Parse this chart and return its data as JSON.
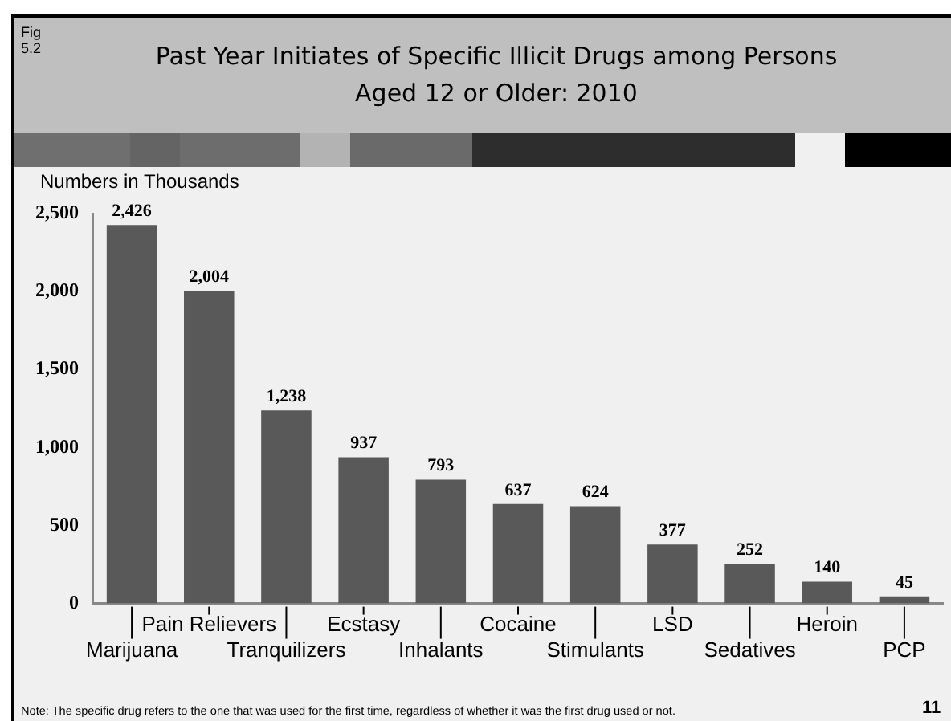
{
  "chart_data": {
    "type": "bar",
    "title": "Past Year Initiates of Specific Illicit Drugs among Persons Aged 12 or Older: 2010",
    "ylabel": "Numbers in Thousands",
    "categories": [
      "Marijuana",
      "Pain Relievers",
      "Tranquilizers",
      "Ecstasy",
      "Inhalants",
      "Cocaine",
      "Stimulants",
      "LSD",
      "Sedatives",
      "Heroin",
      "PCP"
    ],
    "values": [
      2426,
      2004,
      1238,
      937,
      793,
      637,
      624,
      377,
      252,
      140,
      45
    ],
    "value_labels": [
      "2,426",
      "2,004",
      "1,238",
      "937",
      "793",
      "637",
      "624",
      "377",
      "252",
      "140",
      "45"
    ],
    "color": "#595959",
    "ylim": [
      0,
      2500
    ],
    "yticks": [
      0,
      500,
      {
        "value": 1000,
        "label": "1,000"
      },
      {
        "value": 1500,
        "label": "1,500"
      },
      {
        "value": 2000,
        "label": "2,000"
      },
      {
        "value": 2500,
        "label": "2,500"
      }
    ],
    "grid": false,
    "annotations": [
      "Fig 5.2",
      "Note:  The specific drug refers to the one that was used for the first time, regardless of whether it was the first drug used or not.",
      "11"
    ]
  }
}
